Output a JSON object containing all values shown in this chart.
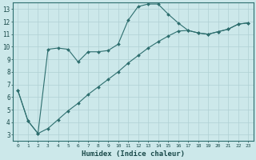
{
  "xlabel": "Humidex (Indice chaleur)",
  "bg_color": "#cce8ea",
  "line_color": "#2d6e6e",
  "grid_color": "#b0d0d4",
  "xlim": [
    -0.5,
    23.5
  ],
  "ylim": [
    2.5,
    13.5
  ],
  "yticks": [
    3,
    4,
    5,
    6,
    7,
    8,
    9,
    10,
    11,
    12,
    13
  ],
  "xticks": [
    0,
    1,
    2,
    3,
    4,
    5,
    6,
    7,
    8,
    9,
    10,
    11,
    12,
    13,
    14,
    15,
    16,
    17,
    18,
    19,
    20,
    21,
    22,
    23
  ],
  "line1_x": [
    0,
    1,
    2,
    3,
    4,
    5,
    6,
    7,
    8,
    9,
    10,
    11,
    12,
    13,
    14,
    15,
    16,
    17,
    18,
    19,
    20,
    21,
    22,
    23
  ],
  "line1_y": [
    6.5,
    4.1,
    3.1,
    9.8,
    9.9,
    9.8,
    8.8,
    9.6,
    9.6,
    9.7,
    10.2,
    12.1,
    13.2,
    13.4,
    13.4,
    12.6,
    11.9,
    11.3,
    11.1,
    11.0,
    11.2,
    11.4,
    11.8,
    11.9
  ],
  "line2_x": [
    0,
    1,
    2,
    3,
    4,
    5,
    6,
    7,
    8,
    9,
    10,
    11,
    12,
    13,
    14,
    15,
    16,
    17,
    18,
    19,
    20,
    21,
    22,
    23
  ],
  "line2_y": [
    6.5,
    4.1,
    3.1,
    3.5,
    4.2,
    4.9,
    5.5,
    6.2,
    6.8,
    7.4,
    8.0,
    8.7,
    9.3,
    9.9,
    10.4,
    10.85,
    11.25,
    11.3,
    11.1,
    11.0,
    11.2,
    11.4,
    11.8,
    11.9
  ],
  "markers1_x": [
    0,
    1,
    2,
    3,
    4,
    5,
    6,
    7,
    8,
    9,
    10,
    11,
    12,
    13,
    14,
    15,
    16,
    17,
    18,
    19,
    20,
    21,
    22,
    23
  ],
  "markers2_x": [
    17,
    18,
    19,
    20,
    21,
    22,
    23
  ]
}
